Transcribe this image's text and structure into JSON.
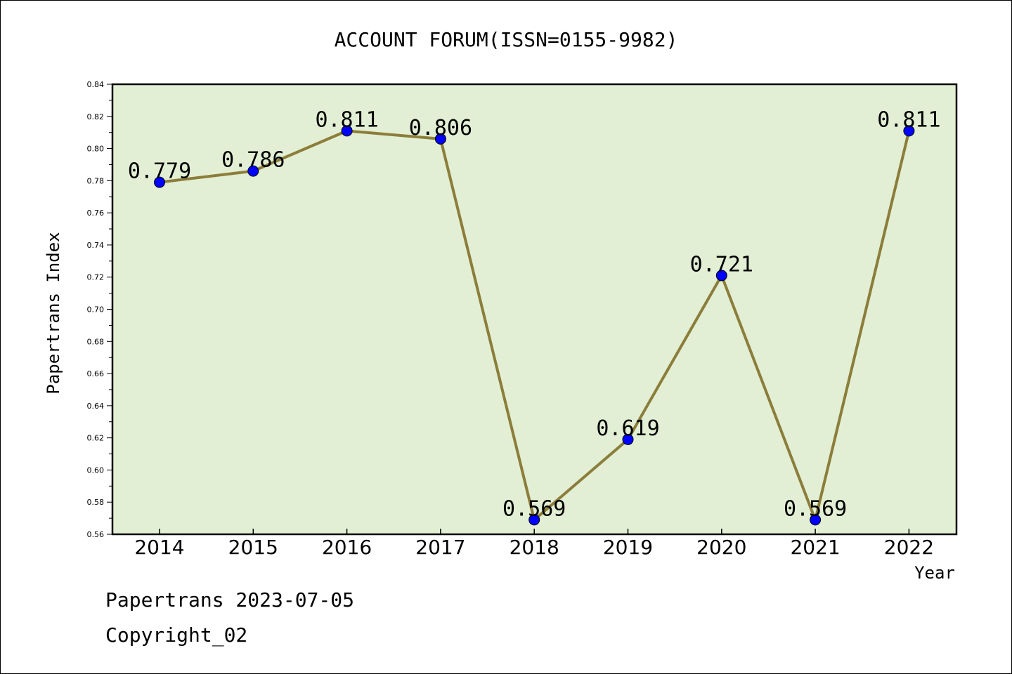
{
  "chart_data": {
    "type": "line",
    "title": "ACCOUNT FORUM(ISSN=0155-9982)",
    "xlabel": "Year",
    "ylabel": "Papertrans Index",
    "categories": [
      "2014",
      "2015",
      "2016",
      "2017",
      "2018",
      "2019",
      "2020",
      "2021",
      "2022"
    ],
    "values": [
      0.779,
      0.786,
      0.811,
      0.806,
      0.569,
      0.619,
      0.721,
      0.569,
      0.811
    ],
    "data_labels": [
      "0.779",
      "0.786",
      "0.811",
      "0.806",
      "0.569",
      "0.619",
      "0.721",
      "0.569",
      "0.811"
    ],
    "ylim": [
      0.56,
      0.84
    ],
    "yticks": [
      "0.56",
      "0.58",
      "0.60",
      "0.62",
      "0.64",
      "0.66",
      "0.68",
      "0.70",
      "0.72",
      "0.74",
      "0.76",
      "0.78",
      "0.80",
      "0.82",
      "0.84"
    ],
    "grid": false,
    "colors": {
      "line": "#8b7d3a",
      "marker": "#0000ff",
      "plot_background": "#e2efd4"
    }
  },
  "footer": {
    "line1": "Papertrans 2023-07-05",
    "line2": "Copyright_02"
  }
}
